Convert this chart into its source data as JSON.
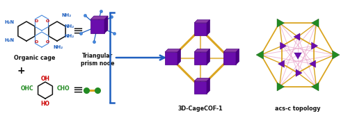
{
  "bg_color": "#ffffff",
  "purple": "#6A0DAD",
  "purple_dark": "#4B0082",
  "purple_mid": "#8B3DA8",
  "green_dark": "#228B22",
  "yellow": "#DAA520",
  "pink": "#E8A0C8",
  "blue": "#1E5FBF",
  "blue_light": "#4488DD",
  "red": "#CC0000",
  "black": "#111111",
  "label_3dcof": "3D-CageCOF-1",
  "label_acs": "acs-c topology",
  "label_organic": "Organic cage",
  "label_tri": "Triangular\nprism node",
  "label_plus": "+"
}
